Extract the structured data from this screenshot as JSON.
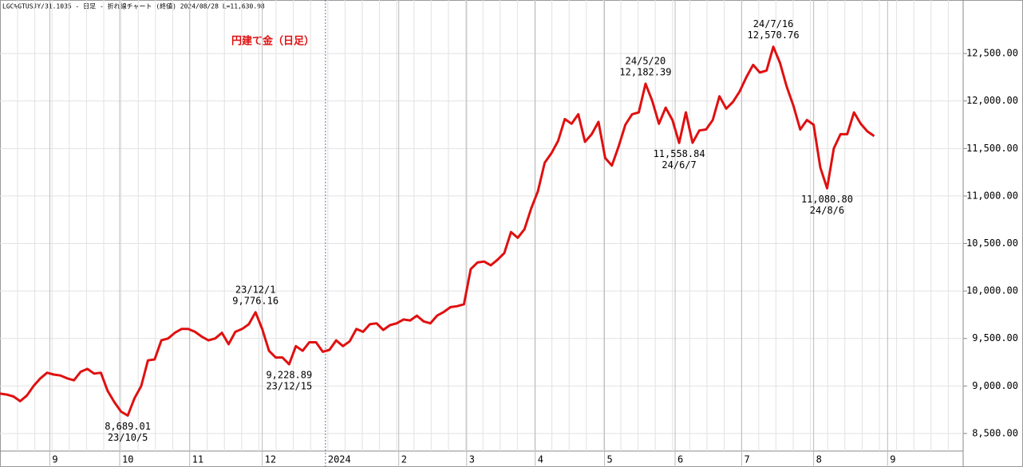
{
  "chart_data": {
    "type": "line",
    "header": "LGC%GTUSJY/31.1035 - 日足 - 折れ線チャート (終値) 2024/08/28 L=11,630.98",
    "title": "円建て金（日足）",
    "series": [
      {
        "name": "円建て金",
        "color": "#e01010",
        "values": [
          8920,
          8910,
          8890,
          8840,
          8900,
          9000,
          9080,
          9140,
          9120,
          9110,
          9080,
          9060,
          9150,
          9180,
          9130,
          9140,
          8950,
          8830,
          8730,
          8689.01,
          8870,
          9000,
          9270,
          9280,
          9480,
          9500,
          9560,
          9600,
          9600,
          9570,
          9520,
          9480,
          9500,
          9560,
          9440,
          9570,
          9600,
          9650,
          9776.16,
          9600,
          9370,
          9300,
          9300,
          9228.89,
          9420,
          9370,
          9460,
          9460,
          9360,
          9380,
          9480,
          9420,
          9470,
          9600,
          9570,
          9650,
          9660,
          9590,
          9640,
          9660,
          9700,
          9690,
          9740,
          9680,
          9660,
          9740,
          9780,
          9830,
          9840,
          9860,
          10230,
          10300,
          10310,
          10270,
          10330,
          10400,
          10620,
          10560,
          10650,
          10870,
          11050,
          11350,
          11450,
          11580,
          11810,
          11760,
          11860,
          11570,
          11650,
          11780,
          11400,
          11320,
          11520,
          11750,
          11860,
          11880,
          12182.39,
          12000,
          11760,
          11930,
          11800,
          11558.84,
          11880,
          11560,
          11690,
          11700,
          11800,
          12050,
          11920,
          11990,
          12100,
          12250,
          12380,
          12300,
          12320,
          12570.76,
          12400,
          12150,
          11950,
          11700,
          11800,
          11750,
          11300,
          11080.8,
          11500,
          11650,
          11650,
          11880,
          11760,
          11680,
          11630.98
        ]
      }
    ],
    "xlim": [
      0,
      143
    ],
    "xticks": [
      {
        "value": 7.4,
        "label": "9"
      },
      {
        "value": 17.8,
        "label": "10"
      },
      {
        "value": 28.2,
        "label": "11"
      },
      {
        "value": 39,
        "label": "12"
      },
      {
        "value": 48.4,
        "label": "2024"
      },
      {
        "value": 59.3,
        "label": "2"
      },
      {
        "value": 69.4,
        "label": "3"
      },
      {
        "value": 79.6,
        "label": "4"
      },
      {
        "value": 89.9,
        "label": "5"
      },
      {
        "value": 100.4,
        "label": "6"
      },
      {
        "value": 110.3,
        "label": "7"
      },
      {
        "value": 121,
        "label": "8"
      },
      {
        "value": 132,
        "label": "9"
      }
    ],
    "ylim": [
      8315,
      13063
    ],
    "yticks": [
      {
        "value": 8500,
        "label": "8,500.00"
      },
      {
        "value": 9000,
        "label": "9,000.00"
      },
      {
        "value": 9500,
        "label": "9,500.00"
      },
      {
        "value": 10000,
        "label": "10,000.00"
      },
      {
        "value": 10500,
        "label": "10,500.00"
      },
      {
        "value": 11000,
        "label": "11,000.00"
      },
      {
        "value": 11500,
        "label": "11,500.00"
      },
      {
        "value": 12000,
        "label": "12,000.00"
      },
      {
        "value": 12500,
        "label": "12,500.00"
      }
    ],
    "grid": true,
    "annotations": [
      {
        "value": 8689.01,
        "value_label": "8,689.01",
        "date": "23/10/5",
        "side": "below"
      },
      {
        "value": 9776.16,
        "value_label": "9,776.16",
        "date": "23/12/1",
        "side": "above"
      },
      {
        "value": 9228.89,
        "value_label": "9,228.89",
        "date": "23/12/15",
        "side": "below"
      },
      {
        "value": 12182.39,
        "value_label": "12,182.39",
        "date": "24/5/20",
        "side": "above"
      },
      {
        "value": 11558.84,
        "value_label": "11,558.84",
        "date": "24/6/7",
        "side": "below"
      },
      {
        "value": 12570.76,
        "value_label": "12,570.76",
        "date": "24/7/16",
        "side": "above"
      },
      {
        "value": 11080.8,
        "value_label": "11,080.80",
        "date": "24/8/6",
        "side": "below"
      }
    ]
  }
}
